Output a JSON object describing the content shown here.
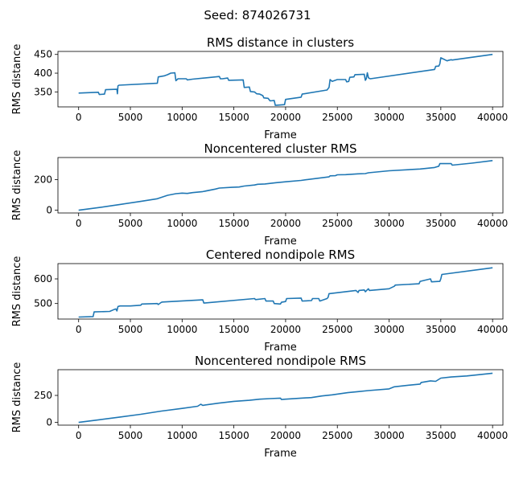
{
  "suptitle": "Seed: 874026731",
  "chart_data": [
    {
      "type": "line",
      "title": "RMS distance in clusters",
      "xlabel": "Frame",
      "ylabel": "RMS distance",
      "xlim": [
        -2000,
        41000
      ],
      "ylim": [
        310,
        458
      ],
      "xticks": [
        0,
        5000,
        10000,
        15000,
        20000,
        25000,
        30000,
        35000,
        40000
      ],
      "yticks": [
        350,
        400,
        450
      ],
      "color": "#1f77b4",
      "x": [
        0,
        1900,
        2000,
        2500,
        2600,
        3700,
        3750,
        3800,
        3900,
        7600,
        7700,
        8300,
        8600,
        8900,
        9300,
        9400,
        9600,
        10400,
        10500,
        11000,
        13600,
        13700,
        13900,
        14400,
        14500,
        15900,
        16000,
        16500,
        16600,
        17000,
        17200,
        17500,
        17800,
        17900,
        18300,
        18500,
        18900,
        19000,
        19900,
        20000,
        21500,
        21600,
        24000,
        24200,
        24300,
        24500,
        25000,
        25800,
        25900,
        26100,
        26200,
        26600,
        26700,
        27600,
        27700,
        27800,
        27900,
        28000,
        28100,
        28200,
        34400,
        34500,
        34800,
        34900,
        35000,
        35600,
        35700,
        36000,
        36100,
        40000
      ],
      "y": [
        347,
        349,
        343,
        344,
        356,
        357,
        345,
        366,
        368,
        373,
        390,
        393,
        396,
        400,
        401,
        380,
        385,
        385,
        382,
        384,
        391,
        385,
        385,
        387,
        381,
        382,
        362,
        363,
        351,
        350,
        345,
        344,
        340,
        334,
        333,
        326,
        327,
        314,
        316,
        330,
        336,
        344,
        355,
        362,
        383,
        378,
        383,
        383,
        377,
        378,
        389,
        390,
        396,
        397,
        381,
        385,
        401,
        388,
        386,
        385,
        410,
        418,
        419,
        425,
        441,
        433,
        434,
        436,
        435,
        450
      ]
    },
    {
      "type": "line",
      "title": "Noncentered cluster RMS",
      "xlabel": "Frame",
      "ylabel": "RMS distance",
      "xlim": [
        -2000,
        41000
      ],
      "ylim": [
        -18,
        345
      ],
      "xticks": [
        0,
        5000,
        10000,
        15000,
        20000,
        25000,
        30000,
        35000,
        40000
      ],
      "yticks": [
        0,
        200
      ],
      "color": "#1f77b4",
      "x": [
        0,
        2000,
        4000,
        6000,
        7600,
        8600,
        9400,
        10000,
        10500,
        11000,
        12000,
        13200,
        13600,
        14800,
        15500,
        16000,
        17000,
        17300,
        18000,
        19000,
        20000,
        21500,
        22000,
        24200,
        24300,
        24800,
        25000,
        25800,
        27000,
        27700,
        28000,
        30000,
        33000,
        34400,
        34800,
        34900,
        36000,
        36100,
        38000,
        40000
      ],
      "y": [
        0,
        18,
        38,
        58,
        75,
        98,
        108,
        112,
        110,
        115,
        122,
        138,
        145,
        150,
        152,
        158,
        165,
        170,
        172,
        180,
        186,
        195,
        200,
        218,
        225,
        226,
        232,
        233,
        238,
        240,
        245,
        258,
        270,
        280,
        288,
        305,
        305,
        295,
        308,
        325
      ]
    },
    {
      "type": "line",
      "title": "Centered nondipole RMS",
      "xlabel": "Frame",
      "ylabel": "RMS distance",
      "xlim": [
        -2000,
        41000
      ],
      "ylim": [
        437,
        662
      ],
      "xticks": [
        0,
        5000,
        10000,
        15000,
        20000,
        25000,
        30000,
        35000,
        40000
      ],
      "yticks": [
        500,
        600
      ],
      "color": "#1f77b4",
      "x": [
        0,
        1400,
        1500,
        3000,
        3400,
        3600,
        3700,
        3800,
        4000,
        5000,
        6000,
        6100,
        7600,
        7700,
        8000,
        8100,
        12000,
        12100,
        17000,
        17100,
        18000,
        18100,
        18800,
        18900,
        19500,
        19600,
        20000,
        20100,
        21500,
        21600,
        22500,
        22600,
        23200,
        23300,
        24000,
        24100,
        24200,
        26800,
        27000,
        27100,
        27600,
        27700,
        28000,
        28100,
        30000,
        30500,
        30600,
        32900,
        33000,
        34000,
        34100,
        34900,
        35000,
        35100,
        40000
      ],
      "y": [
        445,
        447,
        466,
        468,
        475,
        478,
        470,
        488,
        490,
        490,
        493,
        498,
        500,
        496,
        505,
        506,
        515,
        502,
        520,
        516,
        520,
        510,
        510,
        500,
        498,
        505,
        508,
        520,
        522,
        510,
        512,
        520,
        520,
        510,
        520,
        525,
        540,
        553,
        545,
        553,
        555,
        548,
        560,
        553,
        560,
        570,
        575,
        580,
        590,
        600,
        588,
        590,
        600,
        618,
        645
      ]
    },
    {
      "type": "line",
      "title": "Noncentered nondipole RMS",
      "xlabel": "Frame",
      "ylabel": "RMS distance",
      "xlim": [
        -2000,
        41000
      ],
      "ylim": [
        -25,
        488
      ],
      "xticks": [
        0,
        5000,
        10000,
        15000,
        20000,
        25000,
        30000,
        35000,
        40000
      ],
      "yticks": [
        0,
        250
      ],
      "color": "#1f77b4",
      "x": [
        0,
        2000,
        4000,
        6000,
        8000,
        10000,
        11500,
        11800,
        12000,
        13500,
        15000,
        16500,
        17500,
        18500,
        19500,
        19600,
        20000,
        21500,
        22500,
        23500,
        24500,
        26000,
        27000,
        28000,
        30000,
        30500,
        32000,
        33000,
        33100,
        34000,
        34500,
        35000,
        36000,
        37500,
        40000
      ],
      "y": [
        0,
        25,
        50,
        75,
        105,
        130,
        150,
        168,
        158,
        178,
        195,
        205,
        215,
        220,
        225,
        212,
        215,
        225,
        230,
        245,
        255,
        275,
        285,
        295,
        310,
        330,
        345,
        355,
        370,
        385,
        380,
        410,
        420,
        430,
        455
      ]
    }
  ]
}
